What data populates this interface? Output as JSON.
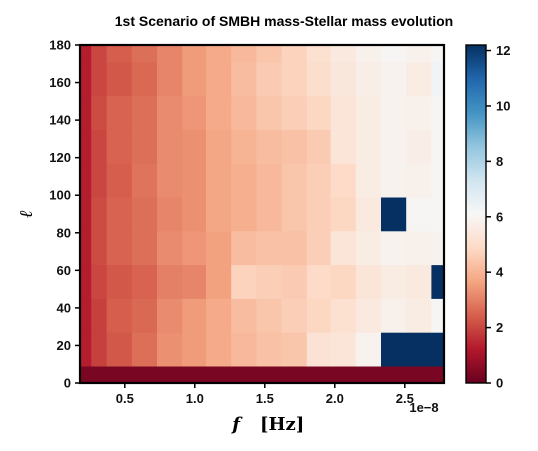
{
  "chart_data": {
    "type": "heatmap",
    "title": "1st Scenario of SMBH mass-Stellar mass evolution",
    "xlabel_symbol": "f",
    "xlabel_unit": "[Hz]",
    "ylabel": "ℓ",
    "x_offset_label": "1e−8",
    "x_ticks": [
      0.5,
      1.0,
      1.5,
      2.0,
      2.5
    ],
    "x_tick_labels": [
      "0.5",
      "1.0",
      "1.5",
      "2.0",
      "2.5"
    ],
    "y_ticks": [
      0,
      20,
      40,
      60,
      80,
      100,
      120,
      140,
      160,
      180
    ],
    "y_tick_labels": [
      "0",
      "20",
      "40",
      "60",
      "80",
      "100",
      "120",
      "140",
      "160",
      "180"
    ],
    "xlim": [
      0.18,
      2.78
    ],
    "ylim": [
      0,
      180
    ],
    "colorbar": {
      "ticks": [
        0,
        2,
        4,
        6,
        8,
        10,
        12
      ],
      "tick_labels": [
        "0",
        "2",
        "4",
        "6",
        "8",
        "10",
        "12"
      ],
      "range": [
        0,
        12.2
      ],
      "colormap": "RdBu"
    },
    "x_bins": [
      0.18,
      0.26,
      0.37,
      0.55,
      0.73,
      0.91,
      1.08,
      1.26,
      1.44,
      1.62,
      1.8,
      1.97,
      2.15,
      2.33,
      2.51,
      2.69,
      2.78
    ],
    "y_bins": [
      0,
      9,
      27,
      45,
      63,
      81,
      99,
      117,
      135,
      153,
      171,
      180
    ],
    "values": [
      [
        0.3,
        0.3,
        0.3,
        0.3,
        0.3,
        0.3,
        0.3,
        0.3,
        0.3,
        0.3,
        0.3,
        0.3,
        0.3,
        0.3,
        0.3,
        0.3
      ],
      [
        1.3,
        1.9,
        2.3,
        2.7,
        3.3,
        3.5,
        3.8,
        4.1,
        4.3,
        4.4,
        5.2,
        5.3,
        5.9,
        12.2,
        12.2,
        12.2
      ],
      [
        1.3,
        1.9,
        2.4,
        2.6,
        3.2,
        3.5,
        3.8,
        4.2,
        4.4,
        4.6,
        4.8,
        5.1,
        5.5,
        5.8,
        5.6,
        6.0
      ],
      [
        1.3,
        2.0,
        2.3,
        2.5,
        3.0,
        3.1,
        3.6,
        4.7,
        4.6,
        4.5,
        4.9,
        4.8,
        5.3,
        5.6,
        5.5,
        12.2
      ],
      [
        1.3,
        2.1,
        2.5,
        2.7,
        3.2,
        3.4,
        3.6,
        4.2,
        4.3,
        4.3,
        4.6,
        5.3,
        5.6,
        5.9,
        5.8,
        5.9
      ],
      [
        1.3,
        2.1,
        2.5,
        2.7,
        3.1,
        3.3,
        3.7,
        3.9,
        4.1,
        4.4,
        4.6,
        4.8,
        5.5,
        12.2,
        6.0,
        6.0
      ],
      [
        1.3,
        2.0,
        2.4,
        2.8,
        3.2,
        3.3,
        3.7,
        3.9,
        4.1,
        4.4,
        4.6,
        4.9,
        5.6,
        5.9,
        5.8,
        6.0
      ],
      [
        1.3,
        2.0,
        2.5,
        2.7,
        3.2,
        3.3,
        3.7,
        4.0,
        4.2,
        4.3,
        4.5,
        5.3,
        5.6,
        5.9,
        5.7,
        6.0
      ],
      [
        1.3,
        2.1,
        2.5,
        2.7,
        3.2,
        3.4,
        3.8,
        4.1,
        4.4,
        4.6,
        4.8,
        5.3,
        5.6,
        5.9,
        5.8,
        6.0
      ],
      [
        1.3,
        2.0,
        2.3,
        2.6,
        3.1,
        3.5,
        3.8,
        4.2,
        4.5,
        4.7,
        5.0,
        5.4,
        5.7,
        5.9,
        5.6,
        6.3
      ],
      [
        1.3,
        2.0,
        2.4,
        2.7,
        3.1,
        3.5,
        3.8,
        4.1,
        4.4,
        4.7,
        5.1,
        5.5,
        5.8,
        6.0,
        5.8,
        6.0
      ]
    ]
  }
}
